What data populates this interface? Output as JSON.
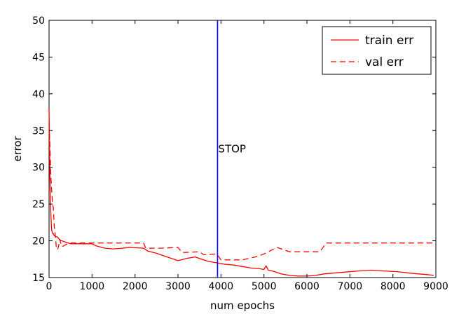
{
  "chart_data": {
    "type": "line",
    "title": "",
    "xlabel": "num epochs",
    "ylabel": "error",
    "xlim": [
      0,
      9000
    ],
    "ylim": [
      15,
      50
    ],
    "xticks": [
      0,
      1000,
      2000,
      3000,
      4000,
      5000,
      6000,
      7000,
      8000,
      9000
    ],
    "yticks": [
      15,
      20,
      25,
      30,
      35,
      40,
      45,
      50
    ],
    "xtick_labels": [
      "0",
      "1000",
      "2000",
      "3000",
      "4000",
      "5000",
      "6000",
      "7000",
      "8000",
      "9000"
    ],
    "ytick_labels": [
      "15",
      "20",
      "25",
      "30",
      "35",
      "40",
      "45",
      "50"
    ],
    "grid": false,
    "legend": {
      "position": "top-right"
    },
    "series": [
      {
        "name": "train err",
        "style": "solid",
        "color": "#ff0000",
        "points": [
          [
            0,
            38
          ],
          [
            10,
            33
          ],
          [
            20,
            29
          ],
          [
            30,
            26
          ],
          [
            40,
            24
          ],
          [
            50,
            22.5
          ],
          [
            60,
            21.5
          ],
          [
            80,
            21
          ],
          [
            100,
            21
          ],
          [
            120,
            20.7
          ],
          [
            150,
            20.6
          ],
          [
            200,
            20.5
          ],
          [
            250,
            20.1
          ],
          [
            300,
            20.0
          ],
          [
            400,
            19.8
          ],
          [
            500,
            19.6
          ],
          [
            1000,
            19.6
          ],
          [
            1100,
            19.3
          ],
          [
            1300,
            19.0
          ],
          [
            1500,
            18.9
          ],
          [
            1700,
            19.0
          ],
          [
            1900,
            19.1
          ],
          [
            2200,
            19.0
          ],
          [
            2300,
            18.6
          ],
          [
            2500,
            18.3
          ],
          [
            2700,
            17.9
          ],
          [
            2900,
            17.5
          ],
          [
            3000,
            17.3
          ],
          [
            3200,
            17.6
          ],
          [
            3400,
            17.8
          ],
          [
            3500,
            17.6
          ],
          [
            3700,
            17.2
          ],
          [
            3900,
            17.0
          ],
          [
            4100,
            16.8
          ],
          [
            4300,
            16.7
          ],
          [
            4500,
            16.5
          ],
          [
            4700,
            16.3
          ],
          [
            4900,
            16.2
          ],
          [
            5000,
            16.1
          ],
          [
            5050,
            16.6
          ],
          [
            5100,
            16.0
          ],
          [
            5200,
            15.9
          ],
          [
            5300,
            15.7
          ],
          [
            5400,
            15.5
          ],
          [
            5600,
            15.3
          ],
          [
            5800,
            15.2
          ],
          [
            6000,
            15.2
          ],
          [
            6200,
            15.3
          ],
          [
            6400,
            15.5
          ],
          [
            6600,
            15.6
          ],
          [
            6800,
            15.7
          ],
          [
            7000,
            15.8
          ],
          [
            7200,
            15.9
          ],
          [
            7500,
            16.0
          ],
          [
            7800,
            15.9
          ],
          [
            8100,
            15.8
          ],
          [
            8400,
            15.6
          ],
          [
            8600,
            15.5
          ],
          [
            8800,
            15.4
          ],
          [
            8950,
            15.3
          ]
        ]
      },
      {
        "name": "val err",
        "style": "dashed",
        "color": "#ff0000",
        "points": [
          [
            0,
            36
          ],
          [
            20,
            33
          ],
          [
            40,
            29
          ],
          [
            60,
            27
          ],
          [
            80,
            25
          ],
          [
            100,
            24.5
          ],
          [
            120,
            22
          ],
          [
            150,
            20.5
          ],
          [
            170,
            19
          ],
          [
            200,
            18.8
          ],
          [
            230,
            19.5
          ],
          [
            250,
            20.2
          ],
          [
            280,
            19.5
          ],
          [
            300,
            19.2
          ],
          [
            400,
            19.5
          ],
          [
            500,
            19.7
          ],
          [
            1000,
            19.7
          ],
          [
            2200,
            19.7
          ],
          [
            2250,
            19.0
          ],
          [
            2600,
            19.0
          ],
          [
            3000,
            19.1
          ],
          [
            3100,
            18.4
          ],
          [
            3500,
            18.5
          ],
          [
            3600,
            18.1
          ],
          [
            3900,
            18.2
          ],
          [
            4000,
            17.4
          ],
          [
            4500,
            17.4
          ],
          [
            4800,
            17.8
          ],
          [
            5000,
            18.2
          ],
          [
            5200,
            18.8
          ],
          [
            5300,
            19.1
          ],
          [
            5500,
            18.7
          ],
          [
            5600,
            18.5
          ],
          [
            6000,
            18.5
          ],
          [
            6300,
            18.5
          ],
          [
            6450,
            19.7
          ],
          [
            7000,
            19.7
          ],
          [
            8000,
            19.7
          ],
          [
            8900,
            19.7
          ],
          [
            8950,
            20.1
          ]
        ]
      }
    ],
    "vline": {
      "x": 3920,
      "color": "#0000ff"
    },
    "annotation": {
      "text": "STOP",
      "x": 3920,
      "y": 32.5
    }
  }
}
